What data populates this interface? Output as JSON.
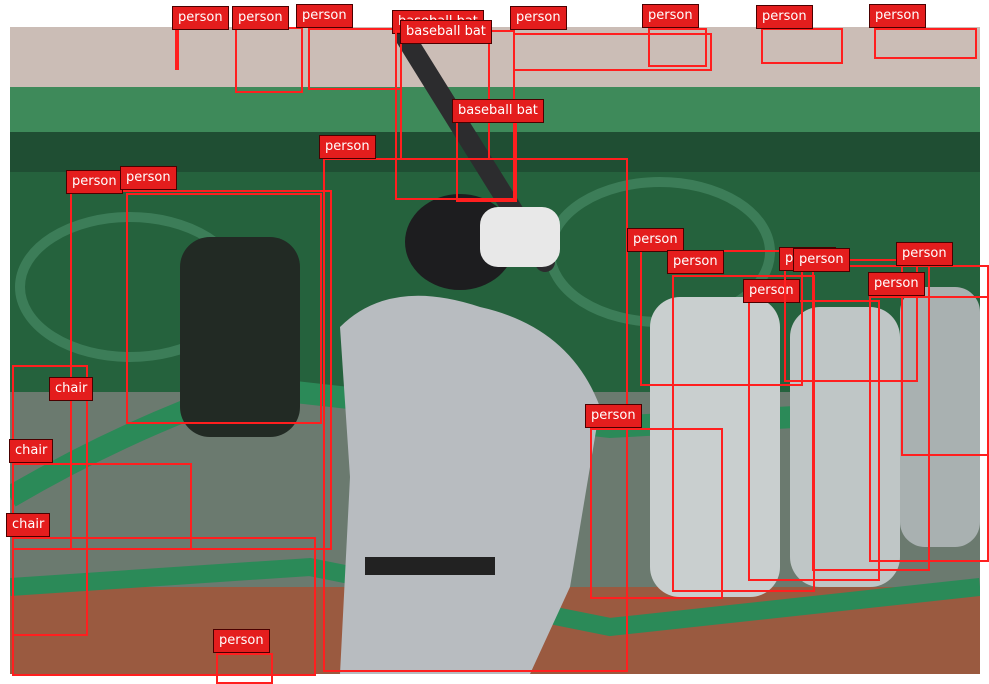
{
  "colors": {
    "box": "#ff1f1f",
    "label_bg": "#e41d1d",
    "label_text": "#ffffff"
  },
  "scene": {
    "description_icon": "baseball-batter-photo"
  },
  "detections": [
    {
      "label": "person"
    },
    {
      "label": "person"
    },
    {
      "label": "person"
    },
    {
      "label": "baseball bat"
    },
    {
      "label": "baseball bat"
    },
    {
      "label": "person"
    },
    {
      "label": "person"
    },
    {
      "label": "person"
    },
    {
      "label": "person"
    },
    {
      "label": "baseball bat"
    },
    {
      "label": "person"
    },
    {
      "label": "person"
    },
    {
      "label": "person"
    },
    {
      "label": "person"
    },
    {
      "label": "person"
    },
    {
      "label": "person"
    },
    {
      "label": "person"
    },
    {
      "label": "person"
    },
    {
      "label": "person"
    },
    {
      "label": "person"
    },
    {
      "label": "chair"
    },
    {
      "label": "chair"
    },
    {
      "label": "chair"
    },
    {
      "label": "person"
    },
    {
      "label": "person"
    }
  ]
}
